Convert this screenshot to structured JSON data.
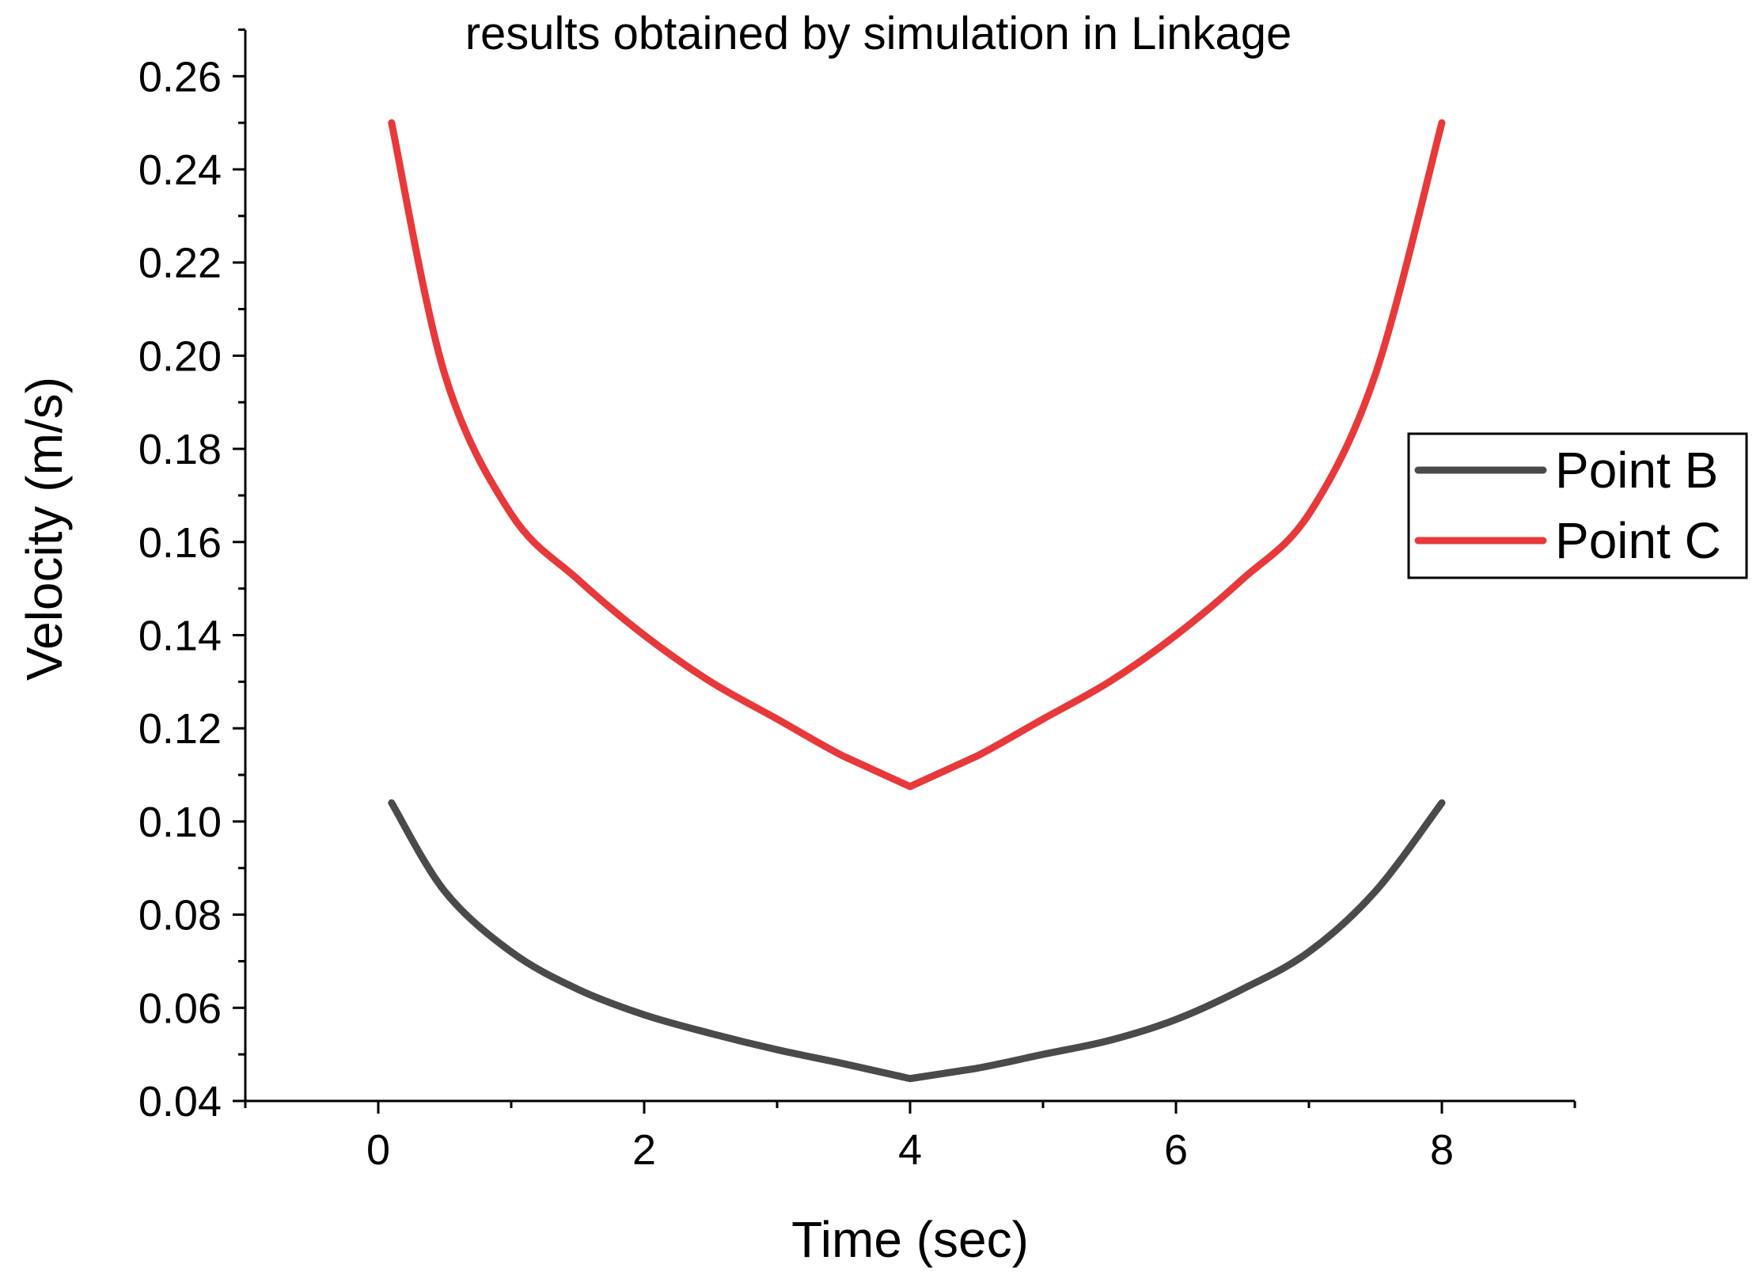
{
  "chart_data": {
    "type": "line",
    "title": "results obtained by simulation in Linkage",
    "xlabel": "Time (sec)",
    "ylabel": "Velocity (m/s)",
    "xlim": [
      -1,
      9
    ],
    "ylim": [
      0.04,
      0.27
    ],
    "xticks": [
      0,
      2,
      4,
      6,
      8
    ],
    "xtick_labels": [
      "0",
      "2",
      "4",
      "6",
      "8"
    ],
    "yticks": [
      0.04,
      0.06,
      0.08,
      0.1,
      0.12,
      0.14,
      0.16,
      0.18,
      0.2,
      0.22,
      0.24,
      0.26
    ],
    "ytick_labels": [
      "0.04",
      "0.06",
      "0.08",
      "0.10",
      "0.12",
      "0.14",
      "0.16",
      "0.18",
      "0.20",
      "0.22",
      "0.24",
      "0.26"
    ],
    "x": [
      0.1,
      0.5,
      1.0,
      1.5,
      2.0,
      2.5,
      3.0,
      3.5,
      4.0,
      4.5,
      5.0,
      5.5,
      6.0,
      6.5,
      7.0,
      7.5,
      8.0
    ],
    "series": [
      {
        "name": "Point B",
        "color": "#4a4a4a",
        "values": [
          0.104,
          0.085,
          0.072,
          0.064,
          0.0585,
          0.0545,
          0.051,
          0.048,
          0.0448,
          0.047,
          0.05,
          0.053,
          0.0575,
          0.064,
          0.072,
          0.085,
          0.104
        ]
      },
      {
        "name": "Point C",
        "color": "#e8393a",
        "values": [
          0.25,
          0.196,
          0.166,
          0.152,
          0.14,
          0.13,
          0.122,
          0.114,
          0.1075,
          0.114,
          0.122,
          0.13,
          0.14,
          0.152,
          0.166,
          0.196,
          0.25
        ]
      }
    ],
    "legend": {
      "position": "right",
      "entries": [
        "Point B",
        "Point C"
      ]
    }
  }
}
